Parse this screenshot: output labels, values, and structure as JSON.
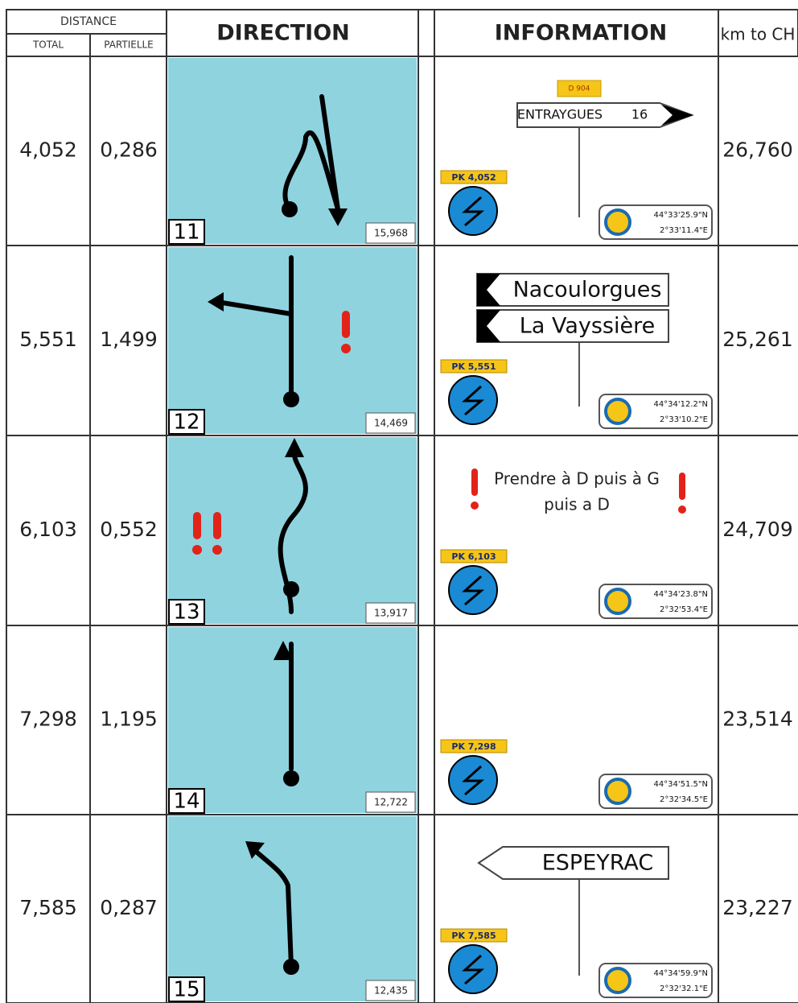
{
  "header": {
    "distance": "DISTANCE",
    "total": "TOTAL",
    "partial": "PARTIELLE",
    "direction": "DIRECTION",
    "information": "INFORMATION",
    "km_to_ch": "km to CH"
  },
  "rows": [
    {
      "total": "4,052",
      "partial": "0,286",
      "box_number": "11",
      "box_km": "15,968",
      "road": "D 904",
      "sign_name": "ENTRAYGUES",
      "sign_distance": "16",
      "pk": "PK 4,052",
      "lat": "44°33'25.9\"N",
      "lon": "2°33'11.4\"E",
      "km_to_ch": "26,760"
    },
    {
      "total": "5,551",
      "partial": "1,499",
      "box_number": "12",
      "box_km": "14,469",
      "boards": [
        "Nacoulorgues",
        "La Vayssière"
      ],
      "pk": "PK 5,551",
      "lat": "44°34'12.2\"N",
      "lon": "2°33'10.2\"E",
      "km_to_ch": "25,261"
    },
    {
      "total": "6,103",
      "partial": "0,552",
      "box_number": "13",
      "box_km": "13,917",
      "note": [
        "Prendre à D puis à G",
        "puis a D"
      ],
      "pk": "PK 6,103",
      "lat": "44°34'23.8\"N",
      "lon": "2°32'53.4\"E",
      "km_to_ch": "24,709"
    },
    {
      "total": "7,298",
      "partial": "1,195",
      "box_number": "14",
      "box_km": "12,722",
      "pk": "PK 7,298",
      "lat": "44°34'51.5\"N",
      "lon": "2°32'34.5\"E",
      "km_to_ch": "23,514"
    },
    {
      "total": "7,585",
      "partial": "0,287",
      "box_number": "15",
      "box_km": "12,435",
      "left_boards": [
        "ESPEYRAC"
      ],
      "pk": "PK 7,585",
      "lat": "44°34'59.9\"N",
      "lon": "2°32'32.1\"E",
      "km_to_ch": "23,227"
    }
  ]
}
